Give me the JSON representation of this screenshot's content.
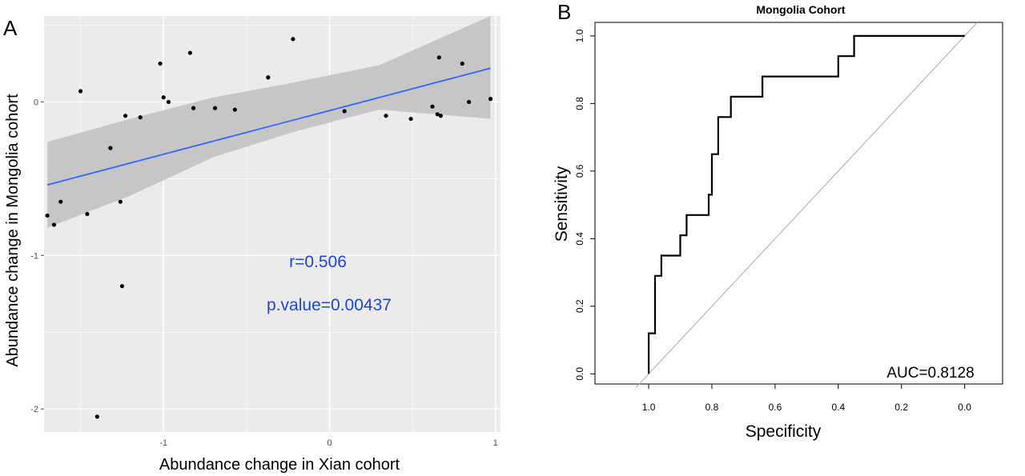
{
  "panels": {
    "a_label": "A",
    "b_label": "B"
  },
  "chart_data": [
    {
      "type": "scatter",
      "title": "",
      "xlabel": "Abundance change in Xian cohort",
      "ylabel": "Abundance change in Mongolia cohort",
      "xlim": [
        -1.72,
        1.03
      ],
      "ylim": [
        -2.15,
        0.56
      ],
      "xticks": [
        -1,
        0,
        1
      ],
      "xtick_labels": [
        "-1",
        "0",
        "1"
      ],
      "yticks": [
        -2,
        -1,
        0
      ],
      "ytick_labels": [
        "-2",
        "-1",
        "0"
      ],
      "grid": true,
      "points": [
        {
          "x": -1.7,
          "y": -0.74
        },
        {
          "x": -1.66,
          "y": -0.8
        },
        {
          "x": -1.62,
          "y": -0.65
        },
        {
          "x": -1.5,
          "y": 0.07
        },
        {
          "x": -1.46,
          "y": -0.73
        },
        {
          "x": -1.4,
          "y": -2.05
        },
        {
          "x": -1.32,
          "y": -0.3
        },
        {
          "x": -1.26,
          "y": -0.65
        },
        {
          "x": -1.25,
          "y": -1.2
        },
        {
          "x": -1.23,
          "y": -0.09
        },
        {
          "x": -1.14,
          "y": -0.1
        },
        {
          "x": -1.02,
          "y": 0.25
        },
        {
          "x": -1.0,
          "y": 0.03
        },
        {
          "x": -0.97,
          "y": 0.0
        },
        {
          "x": -0.84,
          "y": 0.32
        },
        {
          "x": -0.82,
          "y": -0.04
        },
        {
          "x": -0.69,
          "y": -0.04
        },
        {
          "x": -0.57,
          "y": -0.05
        },
        {
          "x": -0.37,
          "y": 0.16
        },
        {
          "x": -0.22,
          "y": 0.41
        },
        {
          "x": 0.09,
          "y": -0.06
        },
        {
          "x": 0.34,
          "y": -0.09
        },
        {
          "x": 0.49,
          "y": -0.11
        },
        {
          "x": 0.62,
          "y": -0.03
        },
        {
          "x": 0.65,
          "y": -0.08
        },
        {
          "x": 0.66,
          "y": 0.29
        },
        {
          "x": 0.67,
          "y": -0.09
        },
        {
          "x": 0.8,
          "y": 0.25
        },
        {
          "x": 0.84,
          "y": 0.0
        },
        {
          "x": 0.97,
          "y": 0.02
        }
      ],
      "fit_line": {
        "x": [
          -1.7,
          0.97
        ],
        "y": [
          -0.54,
          0.22
        ],
        "color": "#3366ff"
      },
      "confidence_band": {
        "x": [
          -1.7,
          -1.2,
          -0.7,
          -0.2,
          0.3,
          0.97
        ],
        "upper": [
          -0.26,
          -0.11,
          0.03,
          0.13,
          0.24,
          0.56
        ],
        "lower": [
          -0.82,
          -0.61,
          -0.36,
          -0.19,
          -0.05,
          -0.11
        ],
        "color": "#c2c2c2"
      },
      "annotations": [
        {
          "text": "r=0.506",
          "x": -0.04,
          "y": -1.0,
          "color": "#1f46d8"
        },
        {
          "text": "p.value=0.00437",
          "x": -0.04,
          "y": -1.3,
          "color": "#1f46d8"
        }
      ],
      "colors": {
        "panel_bg": "#ebebeb",
        "grid": "#ffffff",
        "point": "#000000"
      }
    },
    {
      "type": "line",
      "title": "Mongolia Cohort",
      "xlabel": "Specificity",
      "ylabel": "Sensitivity",
      "xlim": [
        1.17,
        -0.12
      ],
      "ylim": [
        -0.03,
        1.04
      ],
      "xticks": [
        1.0,
        0.8,
        0.6,
        0.4,
        0.2,
        0.0
      ],
      "xtick_labels": [
        "1.0",
        "0.8",
        "0.6",
        "0.4",
        "0.2",
        "0.0"
      ],
      "yticks": [
        0.0,
        0.2,
        0.4,
        0.6,
        0.8,
        1.0
      ],
      "ytick_labels": [
        "0.0",
        "0.2",
        "0.4",
        "0.6",
        "0.8",
        "1.0"
      ],
      "grid": false,
      "series": [
        {
          "x": [
            1.0,
            1.0,
            0.98,
            0.98,
            0.96,
            0.96,
            0.94,
            0.9,
            0.9,
            0.88,
            0.88,
            0.81,
            0.81,
            0.8,
            0.8,
            0.78,
            0.78,
            0.74,
            0.74,
            0.64,
            0.64,
            0.4,
            0.4,
            0.35,
            0.35,
            0.0
          ],
          "y": [
            0.0,
            0.12,
            0.12,
            0.29,
            0.29,
            0.35,
            0.35,
            0.35,
            0.41,
            0.41,
            0.47,
            0.47,
            0.53,
            0.53,
            0.65,
            0.65,
            0.76,
            0.76,
            0.82,
            0.82,
            0.88,
            0.88,
            0.94,
            0.94,
            1.0,
            1.0
          ],
          "color": "#000000"
        }
      ],
      "reference_line": {
        "x": [
          1.04,
          -0.04
        ],
        "y": [
          -0.04,
          1.04
        ],
        "color": "#aaaaaa"
      },
      "annotations": [
        {
          "text": "AUC=0.8128",
          "x": 0.2,
          "y": 0.0
        }
      ]
    }
  ]
}
